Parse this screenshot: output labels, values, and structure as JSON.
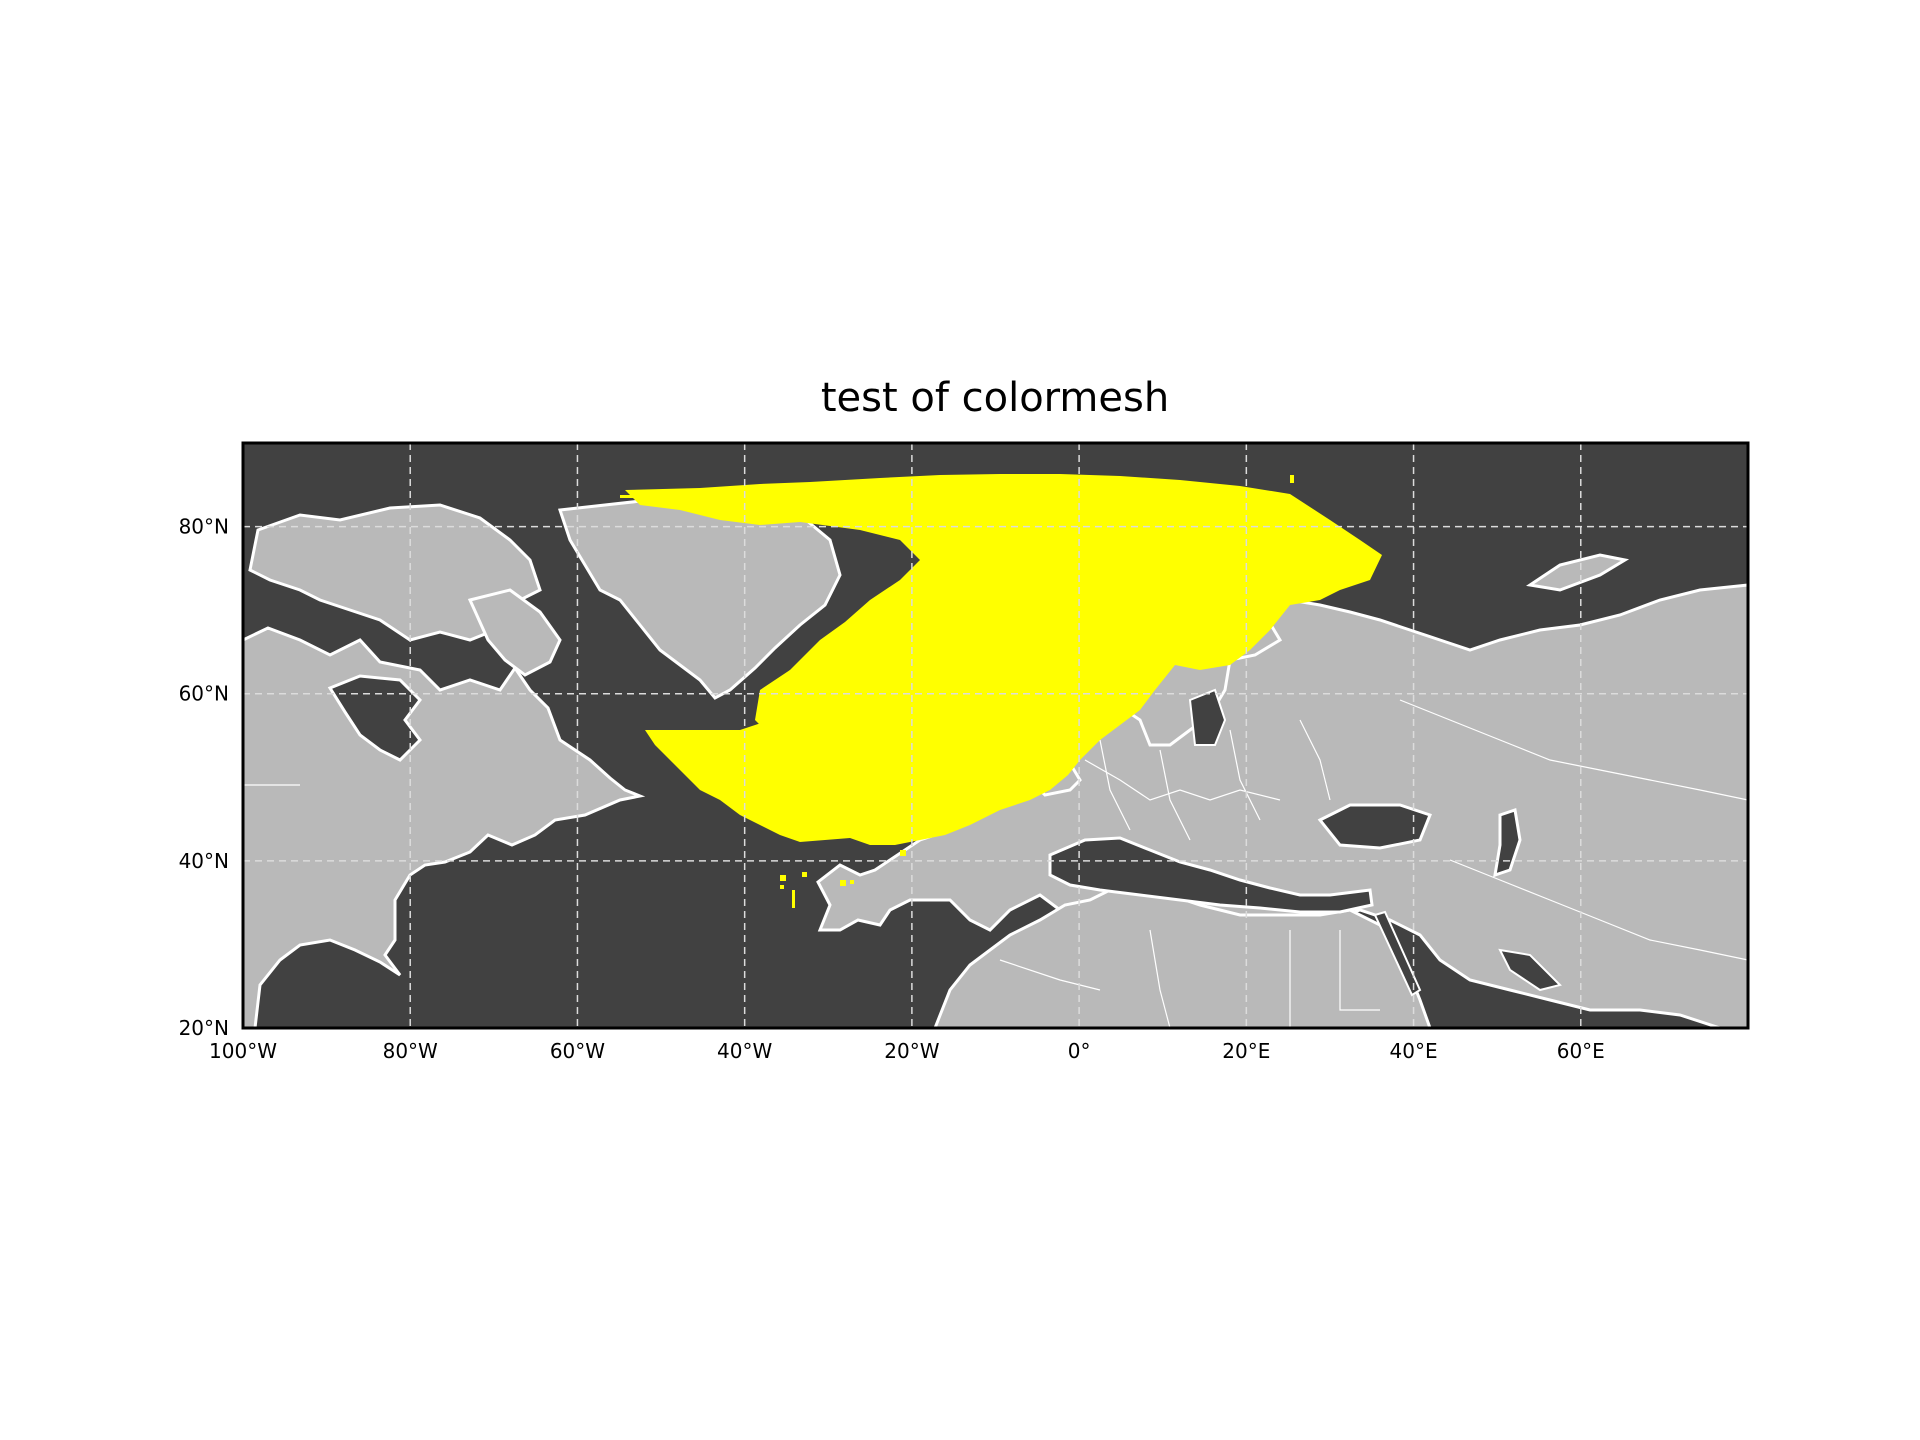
{
  "title": "test of colormesh",
  "colors": {
    "ocean": "#414141",
    "land": "#b9b9b9",
    "coastline": "#ffffff",
    "gridline": "#dcdcdc",
    "colormesh": "#ffff00",
    "frame": "#000000"
  },
  "chart_data": {
    "type": "heatmap",
    "title": "test of colormesh",
    "projection": "PlateCarree",
    "lon_range": [
      -100,
      80
    ],
    "lat_range": [
      20,
      90
    ],
    "grid": true,
    "x_ticks": [
      {
        "value": -100,
        "label": "100°W"
      },
      {
        "value": -80,
        "label": "80°W"
      },
      {
        "value": -60,
        "label": "60°W"
      },
      {
        "value": -40,
        "label": "40°W"
      },
      {
        "value": -20,
        "label": "20°W"
      },
      {
        "value": 0,
        "label": "0°"
      },
      {
        "value": 20,
        "label": "20°E"
      },
      {
        "value": 40,
        "label": "40°E"
      },
      {
        "value": 60,
        "label": "60°E"
      }
    ],
    "y_ticks": [
      {
        "value": 20,
        "label": "20°N"
      },
      {
        "value": 40,
        "label": "40°N"
      },
      {
        "value": 60,
        "label": "60°N"
      },
      {
        "value": 80,
        "label": "80°N"
      }
    ]
  }
}
